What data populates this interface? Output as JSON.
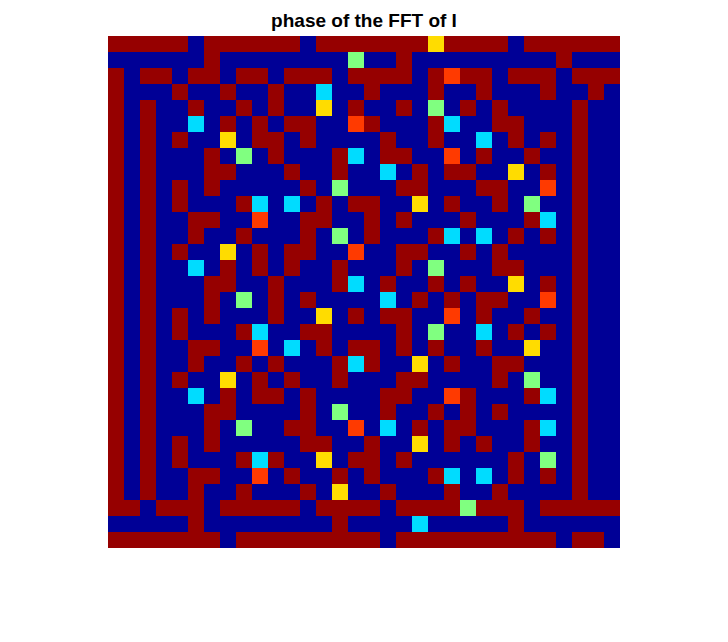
{
  "chart_data": {
    "type": "heatmap",
    "title": "phase of the FFT of I",
    "color": "jet",
    "tick_labels": false,
    "clim": [
      -3.14,
      3.14
    ],
    "cells": [
      [
        3,
        3,
        3,
        3,
        3,
        -3,
        3,
        3,
        3,
        3,
        3,
        3,
        -3,
        3,
        3,
        3,
        3,
        3,
        3,
        3,
        1,
        3,
        3,
        3,
        3,
        -3,
        3,
        3,
        3,
        3,
        3,
        3
      ],
      [
        -3,
        -3,
        -3,
        -3,
        -3,
        -3,
        3,
        -3,
        -3,
        -3,
        -3,
        -3,
        -3,
        -3,
        -3,
        0,
        -3,
        -3,
        3,
        -3,
        -3,
        -3,
        -3,
        -3,
        -3,
        -3,
        -3,
        -3,
        3,
        -3,
        -3,
        -3
      ],
      [
        3,
        -3,
        3,
        3,
        -3,
        3,
        3,
        -3,
        3,
        3,
        -3,
        3,
        3,
        3,
        -3,
        3,
        3,
        3,
        3,
        -3,
        3,
        2,
        3,
        3,
        -3,
        3,
        3,
        3,
        -3,
        3,
        3,
        3
      ],
      [
        3,
        -3,
        -3,
        -3,
        3,
        -3,
        -3,
        3,
        -3,
        -3,
        3,
        -3,
        -3,
        -1,
        -3,
        -3,
        3,
        -3,
        -3,
        -3,
        3,
        -3,
        -3,
        3,
        -3,
        -3,
        -3,
        3,
        -3,
        -3,
        3,
        -3
      ],
      [
        3,
        -3,
        3,
        -3,
        -3,
        3,
        -3,
        -3,
        3,
        -3,
        3,
        -3,
        -3,
        1,
        -3,
        3,
        -3,
        -3,
        3,
        -3,
        0,
        -3,
        3,
        -3,
        3,
        -3,
        -3,
        -3,
        -3,
        3,
        -3,
        -3
      ],
      [
        3,
        -3,
        3,
        -3,
        -3,
        -1,
        -3,
        3,
        -3,
        3,
        -3,
        3,
        3,
        -3,
        -3,
        2,
        3,
        -3,
        -3,
        -3,
        3,
        -1,
        -3,
        -3,
        3,
        3,
        -3,
        -3,
        -3,
        3,
        -3,
        -3
      ],
      [
        3,
        -3,
        3,
        -3,
        3,
        -3,
        -3,
        1,
        -3,
        3,
        3,
        -3,
        3,
        -3,
        -3,
        -3,
        -3,
        3,
        -3,
        -3,
        3,
        -3,
        -3,
        -1,
        -3,
        3,
        -3,
        3,
        -3,
        3,
        -3,
        -3
      ],
      [
        3,
        -3,
        3,
        -3,
        -3,
        -3,
        3,
        -3,
        0,
        -3,
        3,
        -3,
        -3,
        -3,
        3,
        -1,
        -3,
        3,
        3,
        -3,
        -3,
        2,
        -3,
        3,
        -3,
        -3,
        3,
        -3,
        -3,
        3,
        -3,
        -3
      ],
      [
        3,
        -3,
        3,
        -3,
        -3,
        -3,
        3,
        3,
        -3,
        -3,
        -3,
        3,
        -3,
        -3,
        3,
        -3,
        -3,
        -1,
        -3,
        3,
        -3,
        3,
        3,
        -3,
        -3,
        1,
        -3,
        3,
        -3,
        3,
        -3,
        -3
      ],
      [
        3,
        -3,
        3,
        -3,
        3,
        -3,
        3,
        -3,
        -3,
        -3,
        -3,
        -3,
        3,
        -3,
        0,
        -3,
        -3,
        -3,
        3,
        3,
        -3,
        -3,
        -3,
        3,
        3,
        -3,
        -3,
        2,
        -3,
        3,
        -3,
        -3
      ],
      [
        3,
        -3,
        3,
        -3,
        3,
        -3,
        -3,
        -3,
        3,
        -1,
        -3,
        -1,
        -3,
        3,
        -3,
        3,
        3,
        -3,
        -3,
        1,
        -3,
        3,
        -3,
        -3,
        3,
        -3,
        0,
        -3,
        -3,
        3,
        -3,
        -3
      ],
      [
        3,
        -3,
        3,
        -3,
        -3,
        3,
        3,
        -3,
        -3,
        2,
        -3,
        -3,
        3,
        3,
        -3,
        -3,
        3,
        -3,
        3,
        -3,
        -3,
        -3,
        3,
        -3,
        -3,
        -3,
        3,
        -1,
        -3,
        3,
        -3,
        -3
      ],
      [
        3,
        -3,
        3,
        -3,
        -3,
        3,
        -3,
        -3,
        3,
        -3,
        -3,
        -3,
        3,
        -3,
        0,
        -3,
        3,
        -3,
        -3,
        -3,
        3,
        -1,
        -3,
        -1,
        -3,
        3,
        -3,
        3,
        -3,
        3,
        -3,
        -3
      ],
      [
        3,
        -3,
        3,
        -3,
        3,
        -3,
        -3,
        1,
        -3,
        3,
        -3,
        3,
        3,
        -3,
        -3,
        2,
        -3,
        -3,
        3,
        3,
        -3,
        -3,
        3,
        -3,
        3,
        -3,
        -3,
        -3,
        -3,
        3,
        -3,
        -3
      ],
      [
        3,
        -3,
        3,
        -3,
        -3,
        -1,
        -3,
        3,
        -3,
        3,
        -3,
        3,
        -3,
        -3,
        3,
        -3,
        -3,
        -3,
        3,
        -3,
        0,
        -3,
        -3,
        -3,
        3,
        3,
        -3,
        -3,
        -3,
        3,
        -3,
        -3
      ],
      [
        3,
        -3,
        3,
        -3,
        -3,
        -3,
        3,
        3,
        -3,
        -3,
        3,
        -3,
        -3,
        -3,
        3,
        -1,
        -3,
        3,
        -3,
        -3,
        3,
        -3,
        3,
        -3,
        -3,
        1,
        -3,
        3,
        -3,
        3,
        -3,
        -3
      ],
      [
        3,
        -3,
        3,
        -3,
        -3,
        -3,
        3,
        -3,
        0,
        -3,
        3,
        -3,
        3,
        -3,
        -3,
        -3,
        -3,
        -1,
        -3,
        3,
        -3,
        3,
        -3,
        3,
        3,
        -3,
        -3,
        2,
        -3,
        3,
        -3,
        -3
      ],
      [
        3,
        -3,
        3,
        -3,
        3,
        -3,
        3,
        -3,
        -3,
        -3,
        3,
        -3,
        -3,
        1,
        -3,
        3,
        -3,
        3,
        3,
        -3,
        -3,
        2,
        -3,
        3,
        -3,
        -3,
        3,
        -3,
        -3,
        3,
        -3,
        -3
      ],
      [
        3,
        -3,
        3,
        -3,
        3,
        -3,
        -3,
        -3,
        3,
        -1,
        -3,
        -3,
        3,
        3,
        -3,
        -3,
        -3,
        -3,
        3,
        -3,
        0,
        -3,
        -3,
        -1,
        -3,
        3,
        -3,
        3,
        -3,
        3,
        -3,
        -3
      ],
      [
        3,
        -3,
        3,
        -3,
        -3,
        3,
        3,
        -3,
        -3,
        2,
        -3,
        -1,
        -3,
        3,
        -3,
        3,
        3,
        -3,
        3,
        -3,
        3,
        -3,
        -3,
        3,
        -3,
        -3,
        1,
        -3,
        -3,
        3,
        -3,
        -3
      ],
      [
        3,
        -3,
        3,
        -3,
        -3,
        3,
        -3,
        -3,
        3,
        -3,
        3,
        -3,
        -3,
        -3,
        3,
        -1,
        3,
        -3,
        -3,
        1,
        -3,
        3,
        -3,
        -3,
        3,
        3,
        -3,
        -3,
        -3,
        3,
        -3,
        -3
      ],
      [
        3,
        -3,
        3,
        -3,
        3,
        -3,
        -3,
        1,
        -3,
        3,
        -3,
        3,
        -3,
        -3,
        3,
        -3,
        -3,
        -3,
        3,
        3,
        -3,
        -3,
        -3,
        -3,
        3,
        -3,
        0,
        -3,
        -3,
        3,
        -3,
        -3
      ],
      [
        3,
        -3,
        3,
        -3,
        -3,
        -1,
        -3,
        3,
        -3,
        3,
        3,
        -3,
        3,
        -3,
        -3,
        -3,
        -3,
        3,
        3,
        -3,
        -3,
        2,
        3,
        -3,
        -3,
        -3,
        3,
        -1,
        -3,
        3,
        -3,
        -3
      ],
      [
        3,
        -3,
        3,
        -3,
        -3,
        -3,
        3,
        3,
        -3,
        -3,
        -3,
        -3,
        3,
        -3,
        0,
        -3,
        -3,
        3,
        -3,
        -3,
        3,
        -3,
        3,
        -3,
        3,
        -3,
        -3,
        -3,
        -3,
        3,
        -3,
        -3
      ],
      [
        3,
        -3,
        3,
        -3,
        -3,
        -3,
        3,
        -3,
        0,
        -3,
        -3,
        3,
        3,
        -3,
        -3,
        2,
        -3,
        -1,
        -3,
        3,
        -3,
        3,
        3,
        -3,
        -3,
        -3,
        3,
        -1,
        -3,
        3,
        -3,
        -3
      ],
      [
        3,
        -3,
        3,
        -3,
        3,
        -3,
        3,
        -3,
        -3,
        -3,
        -3,
        -3,
        3,
        3,
        -3,
        -3,
        3,
        -3,
        -3,
        1,
        -3,
        3,
        -3,
        3,
        -3,
        -3,
        3,
        -3,
        -3,
        3,
        -3,
        -3
      ],
      [
        3,
        -3,
        3,
        -3,
        3,
        -3,
        -3,
        -3,
        3,
        -1,
        3,
        -3,
        -3,
        1,
        -3,
        3,
        3,
        -3,
        3,
        -3,
        -3,
        -3,
        -3,
        -3,
        -3,
        3,
        -3,
        0,
        -3,
        3,
        -3,
        -3
      ],
      [
        3,
        -3,
        3,
        -3,
        -3,
        3,
        3,
        -3,
        -3,
        2,
        -3,
        3,
        -3,
        -3,
        3,
        -3,
        3,
        -3,
        -3,
        -3,
        3,
        -1,
        -3,
        -1,
        -3,
        3,
        -3,
        3,
        -3,
        3,
        -3,
        -3
      ],
      [
        3,
        -3,
        3,
        -3,
        -3,
        3,
        -3,
        -3,
        3,
        -3,
        -3,
        -3,
        3,
        -3,
        1,
        -3,
        -3,
        3,
        -3,
        -3,
        -3,
        3,
        -3,
        -3,
        3,
        -3,
        -3,
        -3,
        -3,
        3,
        -3,
        -3
      ],
      [
        3,
        3,
        -3,
        3,
        3,
        3,
        -3,
        3,
        3,
        3,
        3,
        3,
        -3,
        3,
        3,
        3,
        3,
        -3,
        3,
        3,
        3,
        3,
        0,
        3,
        3,
        3,
        -3,
        3,
        3,
        3,
        3,
        3
      ],
      [
        -3,
        -3,
        -3,
        -3,
        -3,
        3,
        -3,
        -3,
        -3,
        -3,
        -3,
        -3,
        -3,
        -3,
        3,
        -3,
        -3,
        -3,
        -3,
        -1,
        -3,
        -3,
        -3,
        -3,
        -3,
        3,
        -3,
        -3,
        -3,
        -3,
        -3,
        -3
      ],
      [
        3,
        3,
        3,
        3,
        3,
        3,
        3,
        -3,
        3,
        3,
        3,
        3,
        3,
        3,
        3,
        3,
        3,
        -3,
        3,
        3,
        3,
        3,
        3,
        3,
        3,
        3,
        3,
        3,
        -3,
        3,
        3,
        -3
      ]
    ]
  }
}
